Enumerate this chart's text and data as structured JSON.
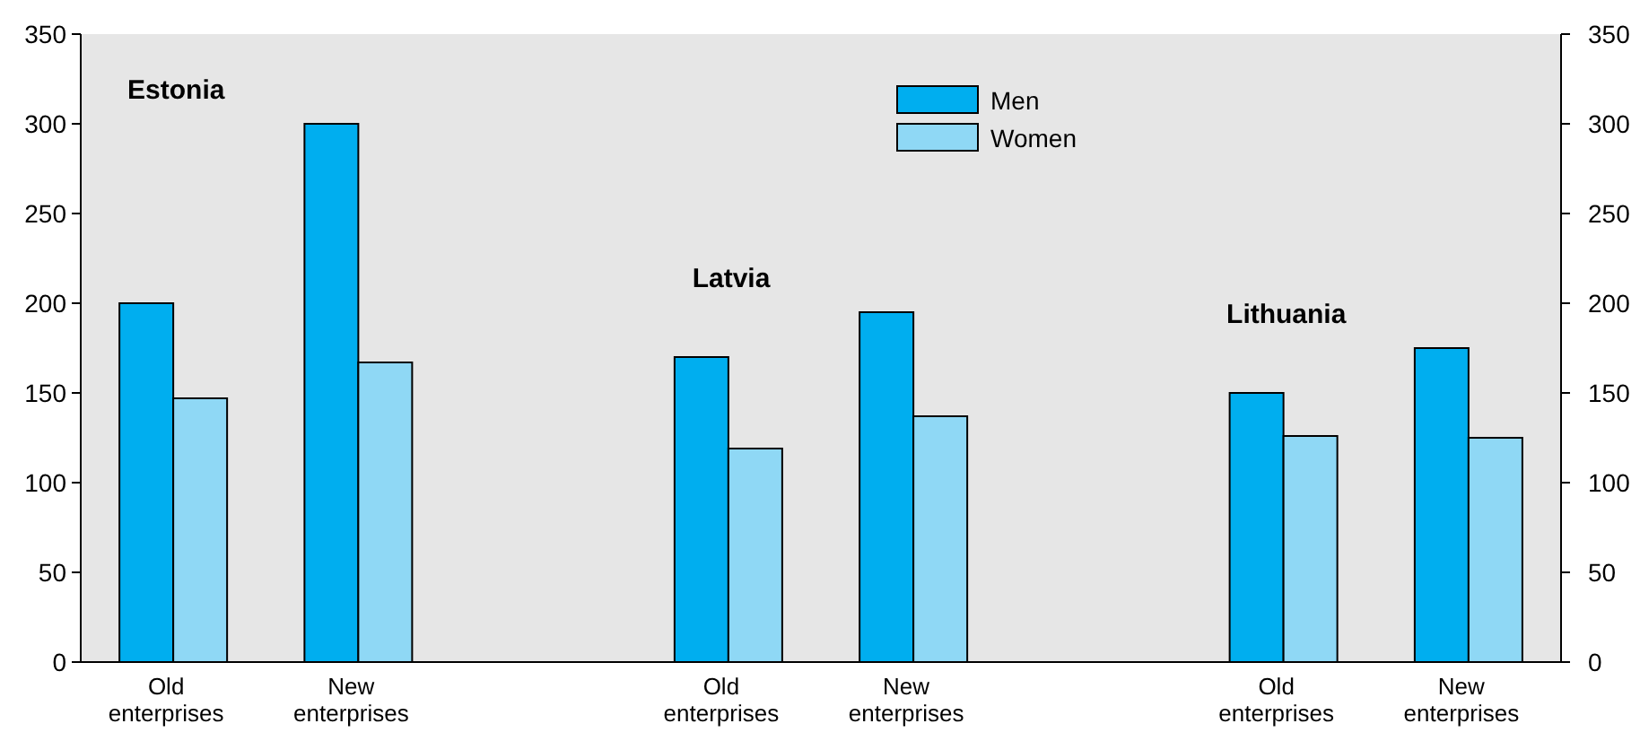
{
  "chart_data": {
    "type": "bar",
    "categories": [
      "Old enterprises",
      "New enterprises",
      null,
      "Old enterprises",
      "New enterprises",
      null,
      "Old enterprises",
      "New enterprises"
    ],
    "series": [
      {
        "name": "Men",
        "color": "#00aeef",
        "values": [
          200,
          300,
          null,
          170,
          195,
          null,
          150,
          175
        ]
      },
      {
        "name": "Women",
        "color": "#8fd8f5",
        "values": [
          147,
          167,
          null,
          119,
          137,
          null,
          126,
          125
        ]
      }
    ],
    "ylim": [
      0,
      350
    ],
    "yticks": [
      0,
      50,
      100,
      150,
      200,
      250,
      300,
      350
    ],
    "y2lim": [
      0,
      350
    ],
    "y2ticks": [
      0,
      50,
      100,
      150,
      200,
      250,
      300,
      350
    ],
    "annotations": [
      "Estonia",
      "Latvia",
      "Lithuania"
    ],
    "legend": "top",
    "grid": false
  }
}
